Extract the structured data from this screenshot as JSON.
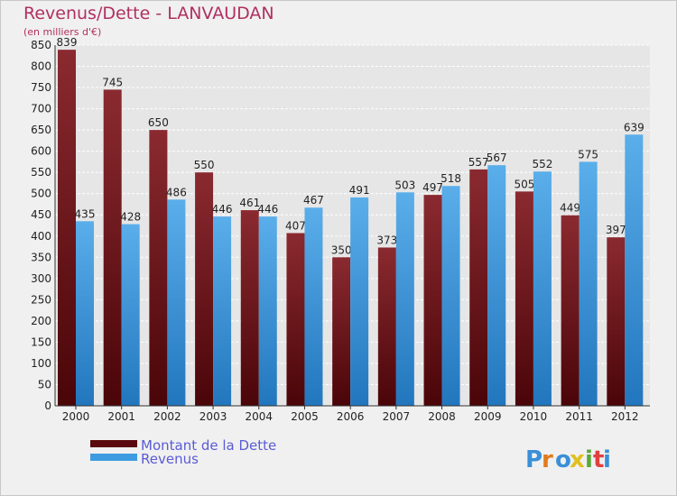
{
  "header": {
    "title": "Revenus/Dette - LANVAUDAN",
    "subtitle": "(en milliers d'€)"
  },
  "logo": {
    "text": "Proxiti"
  },
  "colors": {
    "dette": "#7a1a1e",
    "revenus": "#3d9be0",
    "grid": "#ffffff",
    "plot_bg": "#e8e8e8"
  },
  "chart_data": {
    "type": "bar",
    "title": "Revenus/Dette - LANVAUDAN",
    "ylabel": "(en milliers d'€)",
    "xlabel": "",
    "categories": [
      "2000",
      "2001",
      "2002",
      "2003",
      "2004",
      "2005",
      "2006",
      "2007",
      "2008",
      "2009",
      "2010",
      "2011",
      "2012"
    ],
    "series": [
      {
        "name": "Montant de la Dette",
        "values": [
          839,
          745,
          650,
          550,
          461,
          407,
          350,
          373,
          497,
          557,
          505,
          449,
          397
        ]
      },
      {
        "name": "Revenus",
        "values": [
          435,
          428,
          486,
          446,
          446,
          467,
          491,
          503,
          518,
          567,
          552,
          575,
          639
        ]
      }
    ],
    "ylim": [
      0,
      850
    ],
    "yticks": [
      0,
      50,
      100,
      150,
      200,
      250,
      300,
      350,
      400,
      450,
      500,
      550,
      600,
      650,
      700,
      750,
      800,
      850
    ],
    "grid": true,
    "legend": "bottom-left"
  }
}
